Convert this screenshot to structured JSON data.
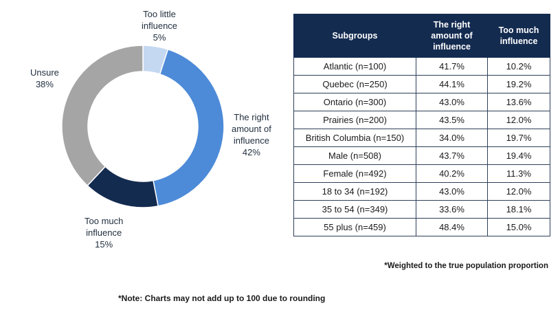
{
  "chart_data": [
    {
      "type": "pie",
      "donut": true,
      "slices": [
        {
          "label_lines": [
            "Too little",
            "influence"
          ],
          "pct_label": "5%",
          "value": 5,
          "color": "#c5d8f1"
        },
        {
          "label_lines": [
            "The right",
            "amount of",
            "influence"
          ],
          "pct_label": "42%",
          "value": 42,
          "color": "#4d8bd8"
        },
        {
          "label_lines": [
            "Too much",
            "influence"
          ],
          "pct_label": "15%",
          "value": 15,
          "color": "#142b50"
        },
        {
          "label_lines": [
            "Unsure"
          ],
          "pct_label": "38%",
          "value": 38,
          "color": "#a5a5a5"
        }
      ]
    },
    {
      "type": "table",
      "columns": [
        "Subgroups",
        "The right amount of influence",
        "Too much influence"
      ],
      "rows": [
        [
          "Atlantic (n=100)",
          "41.7%",
          "10.2%"
        ],
        [
          "Quebec (n=250)",
          "44.1%",
          "19.2%"
        ],
        [
          "Ontario (n=300)",
          "43.0%",
          "13.6%"
        ],
        [
          "Prairies (n=200)",
          "43.5%",
          "12.0%"
        ],
        [
          "British Columbia (n=150)",
          "34.0%",
          "19.7%"
        ],
        [
          "Male (n=508)",
          "43.7%",
          "19.4%"
        ],
        [
          "Female (n=492)",
          "40.2%",
          "11.3%"
        ],
        [
          "18 to 34 (n=192)",
          "43.0%",
          "12.0%"
        ],
        [
          "35 to 54 (n=349)",
          "33.6%",
          "18.1%"
        ],
        [
          "55 plus (n=459)",
          "48.4%",
          "15.0%"
        ]
      ]
    }
  ],
  "notes": {
    "weighted": "*Weighted to the true population proportion",
    "rounding": "*Note: Charts may not add up to 100 due to rounding"
  }
}
